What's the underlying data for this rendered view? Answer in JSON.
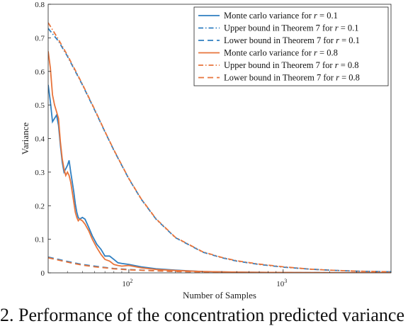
{
  "chart_data": {
    "type": "line",
    "xlabel": "Number of Samples",
    "ylabel": "Variance",
    "x_scale": "log",
    "xlim": [
      30,
      5000
    ],
    "ylim": [
      0,
      0.8
    ],
    "x_ticks": [
      100,
      1000
    ],
    "x_tick_labels": [
      "10",
      "10"
    ],
    "x_tick_exponents": [
      "2",
      "3"
    ],
    "y_ticks": [
      0,
      0.1,
      0.2,
      0.3,
      0.4,
      0.5,
      0.6,
      0.7,
      0.8
    ],
    "y_tick_labels": [
      "0",
      "0.1",
      "0.2",
      "0.3",
      "0.4",
      "0.5",
      "0.6",
      "0.7",
      "0.8"
    ],
    "grid": false,
    "legend_placement": "top-right",
    "series": [
      {
        "name": "Monte carlo variance for r = 0.1",
        "legend_prefix": "Monte carlo variance for ",
        "legend_var": "r",
        "legend_suffix": " = 0.1",
        "color": "#2f7fc1",
        "dash": "solid",
        "points": [
          [
            30,
            0.56
          ],
          [
            31,
            0.51
          ],
          [
            32,
            0.45
          ],
          [
            33,
            0.46
          ],
          [
            34,
            0.47
          ],
          [
            35,
            0.44
          ],
          [
            36,
            0.38
          ],
          [
            37,
            0.33
          ],
          [
            38,
            0.3
          ],
          [
            39,
            0.31
          ],
          [
            40,
            0.32
          ],
          [
            41,
            0.335
          ],
          [
            42,
            0.3
          ],
          [
            43,
            0.27
          ],
          [
            44,
            0.24
          ],
          [
            45,
            0.205
          ],
          [
            46,
            0.18
          ],
          [
            47,
            0.165
          ],
          [
            48,
            0.16
          ],
          [
            50,
            0.165
          ],
          [
            52,
            0.16
          ],
          [
            55,
            0.135
          ],
          [
            58,
            0.11
          ],
          [
            62,
            0.085
          ],
          [
            66,
            0.07
          ],
          [
            70,
            0.05
          ],
          [
            75,
            0.05
          ],
          [
            80,
            0.04
          ],
          [
            85,
            0.03
          ],
          [
            90,
            0.028
          ],
          [
            100,
            0.025
          ],
          [
            120,
            0.018
          ],
          [
            150,
            0.012
          ],
          [
            200,
            0.008
          ],
          [
            300,
            0.004
          ],
          [
            500,
            0.002
          ],
          [
            1000,
            0.001
          ],
          [
            2000,
            0.0005
          ],
          [
            5000,
            0.0002
          ]
        ]
      },
      {
        "name": "Upper bound in Theorem 7 for r = 0.1",
        "legend_prefix": "Upper bound in Theorem 7 for ",
        "legend_var": "r",
        "legend_suffix": " = 0.1",
        "color": "#2f7fc1",
        "dash": "dashdot",
        "points": [
          [
            30,
            0.728
          ],
          [
            35,
            0.69
          ],
          [
            40,
            0.645
          ],
          [
            45,
            0.6
          ],
          [
            50,
            0.56
          ],
          [
            60,
            0.485
          ],
          [
            70,
            0.42
          ],
          [
            80,
            0.365
          ],
          [
            90,
            0.32
          ],
          [
            100,
            0.28
          ],
          [
            120,
            0.22
          ],
          [
            150,
            0.16
          ],
          [
            200,
            0.105
          ],
          [
            300,
            0.062
          ],
          [
            400,
            0.045
          ],
          [
            500,
            0.035
          ],
          [
            700,
            0.025
          ],
          [
            1000,
            0.017
          ],
          [
            1500,
            0.011
          ],
          [
            2000,
            0.008
          ],
          [
            3000,
            0.005
          ],
          [
            5000,
            0.003
          ]
        ]
      },
      {
        "name": "Lower bound in Theorem 7 for r = 0.1",
        "legend_prefix": "Lower bound in Theorem 7 for ",
        "legend_var": "r",
        "legend_suffix": " = 0.1",
        "color": "#2f7fc1",
        "dash": "dashed",
        "points": [
          [
            30,
            0.047
          ],
          [
            35,
            0.04
          ],
          [
            40,
            0.034
          ],
          [
            45,
            0.029
          ],
          [
            50,
            0.025
          ],
          [
            60,
            0.02
          ],
          [
            70,
            0.016
          ],
          [
            80,
            0.013
          ],
          [
            100,
            0.01
          ],
          [
            150,
            0.006
          ],
          [
            200,
            0.004
          ],
          [
            300,
            0.0025
          ],
          [
            500,
            0.0015
          ],
          [
            1000,
            0.0007
          ],
          [
            2000,
            0.0003
          ],
          [
            5000,
            0.0001
          ]
        ]
      },
      {
        "name": "Monte carlo variance for r = 0.8",
        "legend_prefix": "Monte carlo variance for ",
        "legend_var": "r",
        "legend_suffix": " = 0.8",
        "color": "#e8743b",
        "dash": "solid",
        "points": [
          [
            30,
            0.66
          ],
          [
            31,
            0.61
          ],
          [
            32,
            0.53
          ],
          [
            33,
            0.5
          ],
          [
            34,
            0.48
          ],
          [
            35,
            0.46
          ],
          [
            36,
            0.39
          ],
          [
            37,
            0.34
          ],
          [
            38,
            0.31
          ],
          [
            39,
            0.29
          ],
          [
            40,
            0.3
          ],
          [
            41,
            0.29
          ],
          [
            42,
            0.27
          ],
          [
            43,
            0.24
          ],
          [
            44,
            0.21
          ],
          [
            45,
            0.18
          ],
          [
            46,
            0.165
          ],
          [
            47,
            0.155
          ],
          [
            48,
            0.16
          ],
          [
            50,
            0.155
          ],
          [
            52,
            0.145
          ],
          [
            55,
            0.125
          ],
          [
            58,
            0.1
          ],
          [
            62,
            0.075
          ],
          [
            66,
            0.055
          ],
          [
            70,
            0.04
          ],
          [
            75,
            0.035
          ],
          [
            80,
            0.025
          ],
          [
            85,
            0.022
          ],
          [
            90,
            0.02
          ],
          [
            100,
            0.022
          ],
          [
            120,
            0.015
          ],
          [
            150,
            0.01
          ],
          [
            200,
            0.007
          ],
          [
            300,
            0.004
          ],
          [
            500,
            0.002
          ],
          [
            1000,
            0.001
          ],
          [
            2000,
            0.0005
          ],
          [
            5000,
            0.0002
          ]
        ]
      },
      {
        "name": "Upper bound in Theorem 7 for r = 0.8",
        "legend_prefix": "Upper bound in Theorem 7 for ",
        "legend_var": "r",
        "legend_suffix": " = 0.8",
        "color": "#e8743b",
        "dash": "dashdot",
        "points": [
          [
            30,
            0.745
          ],
          [
            35,
            0.695
          ],
          [
            40,
            0.648
          ],
          [
            45,
            0.603
          ],
          [
            50,
            0.562
          ],
          [
            60,
            0.487
          ],
          [
            70,
            0.421
          ],
          [
            80,
            0.366
          ],
          [
            90,
            0.321
          ],
          [
            100,
            0.281
          ],
          [
            120,
            0.221
          ],
          [
            150,
            0.161
          ],
          [
            200,
            0.106
          ],
          [
            300,
            0.063
          ],
          [
            400,
            0.046
          ],
          [
            500,
            0.036
          ],
          [
            700,
            0.026
          ],
          [
            1000,
            0.018
          ],
          [
            1500,
            0.011
          ],
          [
            2000,
            0.008
          ],
          [
            3000,
            0.005
          ],
          [
            5000,
            0.003
          ]
        ]
      },
      {
        "name": "Lower bound in Theorem 7 for r = 0.8",
        "legend_prefix": "Lower bound in Theorem 7 for ",
        "legend_var": "r",
        "legend_suffix": " = 0.8",
        "color": "#e8743b",
        "dash": "dashed",
        "points": [
          [
            30,
            0.045
          ],
          [
            35,
            0.038
          ],
          [
            40,
            0.032
          ],
          [
            45,
            0.027
          ],
          [
            50,
            0.023
          ],
          [
            60,
            0.018
          ],
          [
            70,
            0.015
          ],
          [
            80,
            0.012
          ],
          [
            100,
            0.009
          ],
          [
            150,
            0.006
          ],
          [
            200,
            0.004
          ],
          [
            300,
            0.0025
          ],
          [
            500,
            0.0015
          ],
          [
            1000,
            0.0007
          ],
          [
            2000,
            0.0003
          ],
          [
            5000,
            0.0001
          ]
        ]
      }
    ]
  },
  "caption": "2. Performance of the concentration predicted variance"
}
